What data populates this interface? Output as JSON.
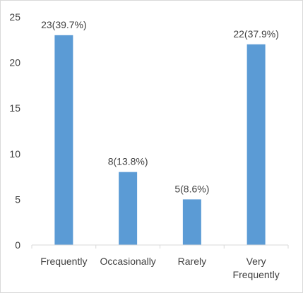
{
  "chart_data": {
    "type": "bar",
    "categories": [
      [
        "Frequently"
      ],
      [
        "Occasionally"
      ],
      [
        "Rarely"
      ],
      [
        "Very",
        "Frequently"
      ]
    ],
    "values": [
      23,
      8,
      5,
      22
    ],
    "data_labels": [
      "23(39.7%)",
      "8(13.8%)",
      "5(8.6%)",
      "22(37.9%)"
    ],
    "ylim": [
      0,
      25
    ],
    "yticks": [
      0,
      5,
      10,
      15,
      20,
      25
    ],
    "grid": false,
    "legend": "none",
    "title": "",
    "xlabel": "",
    "ylabel": ""
  },
  "colors": {
    "bar": "#5b9bd5",
    "axis": "#d9d9d9",
    "text": "#404040"
  }
}
